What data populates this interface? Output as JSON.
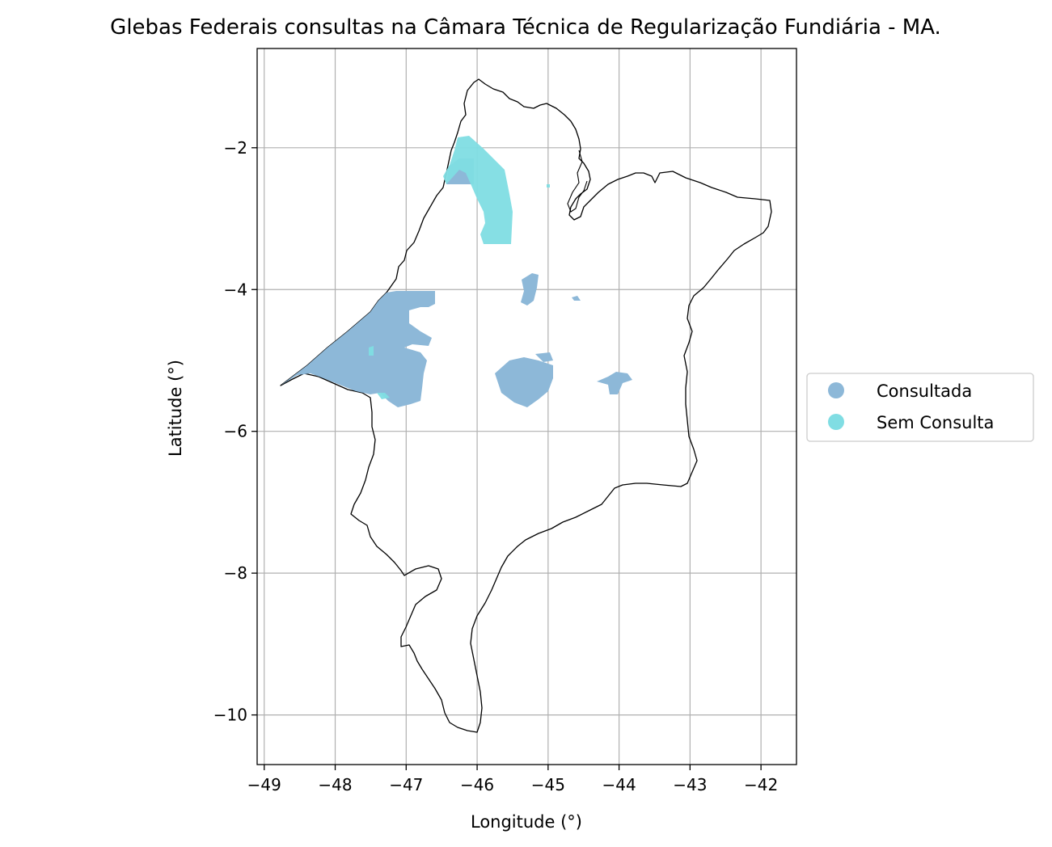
{
  "title": "Glebas Federais consultas na Câmara Técnica de Regularização Fundiária - MA.",
  "xlabel": "Longitude (°)",
  "ylabel": "Latitude (°)",
  "xticks": [
    "−49",
    "−48",
    "−47",
    "−46",
    "−45",
    "−44",
    "−43",
    "−42"
  ],
  "yticks": [
    "−2",
    "−4",
    "−6",
    "−8",
    "−10"
  ],
  "legend": [
    {
      "label": "Consultada",
      "color": "#8db8d8"
    },
    {
      "label": "Sem Consulta",
      "color": "#80dde3"
    }
  ],
  "colors": {
    "consultada": "#8db8d8",
    "sem_consulta": "#80dde3",
    "outline": "#000000",
    "grid": "#b0b0b0"
  },
  "chart_data": {
    "type": "map",
    "region": "MA",
    "xlim": [
      -49.1,
      -41.5
    ],
    "ylim": [
      -10.7,
      -0.6
    ],
    "grid": true,
    "legend_position": "right",
    "categories": [
      "Consultada",
      "Sem Consulta"
    ]
  }
}
